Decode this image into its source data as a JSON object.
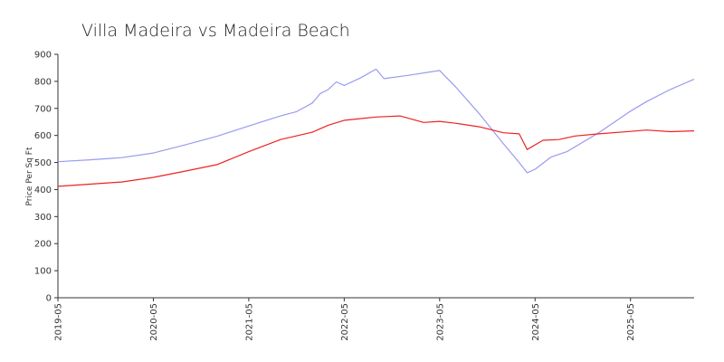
{
  "chart_data": {
    "type": "line",
    "title": "Villa Madeira vs Madeira Beach",
    "xlabel": "",
    "ylabel": "Price Per Sq Ft",
    "ylim": [
      0,
      900
    ],
    "yticks": [
      0,
      100,
      200,
      300,
      400,
      500,
      600,
      700,
      800,
      900
    ],
    "xlim": [
      "2019-05",
      "2026-01"
    ],
    "xticks": [
      "2019-05",
      "2020-05",
      "2021-05",
      "2022-05",
      "2023-05",
      "2024-05",
      "2025-05"
    ],
    "grid": false,
    "legend": "none",
    "series": [
      {
        "color": "#9a9af0",
        "points": [
          [
            "2019-05",
            503
          ],
          [
            "2019-09",
            510
          ],
          [
            "2020-01",
            518
          ],
          [
            "2020-05",
            535
          ],
          [
            "2020-09",
            565
          ],
          [
            "2021-01",
            597
          ],
          [
            "2021-05",
            635
          ],
          [
            "2021-09",
            672
          ],
          [
            "2021-11",
            688
          ],
          [
            "2022-01",
            720
          ],
          [
            "2022-02",
            755
          ],
          [
            "2022-03",
            770
          ],
          [
            "2022-04",
            798
          ],
          [
            "2022-05",
            785
          ],
          [
            "2022-07",
            812
          ],
          [
            "2022-09",
            845
          ],
          [
            "2022-10",
            810
          ],
          [
            "2023-01",
            822
          ],
          [
            "2023-05",
            840
          ],
          [
            "2023-07",
            780
          ],
          [
            "2023-10",
            680
          ],
          [
            "2024-01",
            570
          ],
          [
            "2024-03",
            500
          ],
          [
            "2024-04",
            462
          ],
          [
            "2024-05",
            475
          ],
          [
            "2024-07",
            520
          ],
          [
            "2024-09",
            540
          ],
          [
            "2025-01",
            610
          ],
          [
            "2025-05",
            690
          ],
          [
            "2025-07",
            725
          ],
          [
            "2025-10",
            770
          ],
          [
            "2026-01",
            808
          ]
        ]
      },
      {
        "color": "#ee2222",
        "points": [
          [
            "2019-05",
            412
          ],
          [
            "2019-09",
            420
          ],
          [
            "2020-01",
            428
          ],
          [
            "2020-05",
            445
          ],
          [
            "2020-09",
            468
          ],
          [
            "2021-01",
            492
          ],
          [
            "2021-05",
            540
          ],
          [
            "2021-09",
            585
          ],
          [
            "2022-01",
            612
          ],
          [
            "2022-03",
            638
          ],
          [
            "2022-05",
            656
          ],
          [
            "2022-07",
            662
          ],
          [
            "2022-09",
            668
          ],
          [
            "2022-12",
            672
          ],
          [
            "2023-03",
            648
          ],
          [
            "2023-05",
            652
          ],
          [
            "2023-07",
            645
          ],
          [
            "2023-10",
            632
          ],
          [
            "2024-01",
            610
          ],
          [
            "2024-03",
            606
          ],
          [
            "2024-04",
            548
          ],
          [
            "2024-06",
            582
          ],
          [
            "2024-08",
            585
          ],
          [
            "2024-10",
            598
          ],
          [
            "2025-01",
            606
          ],
          [
            "2025-05",
            615
          ],
          [
            "2025-07",
            620
          ],
          [
            "2025-10",
            614
          ],
          [
            "2026-01",
            617
          ]
        ]
      }
    ]
  }
}
